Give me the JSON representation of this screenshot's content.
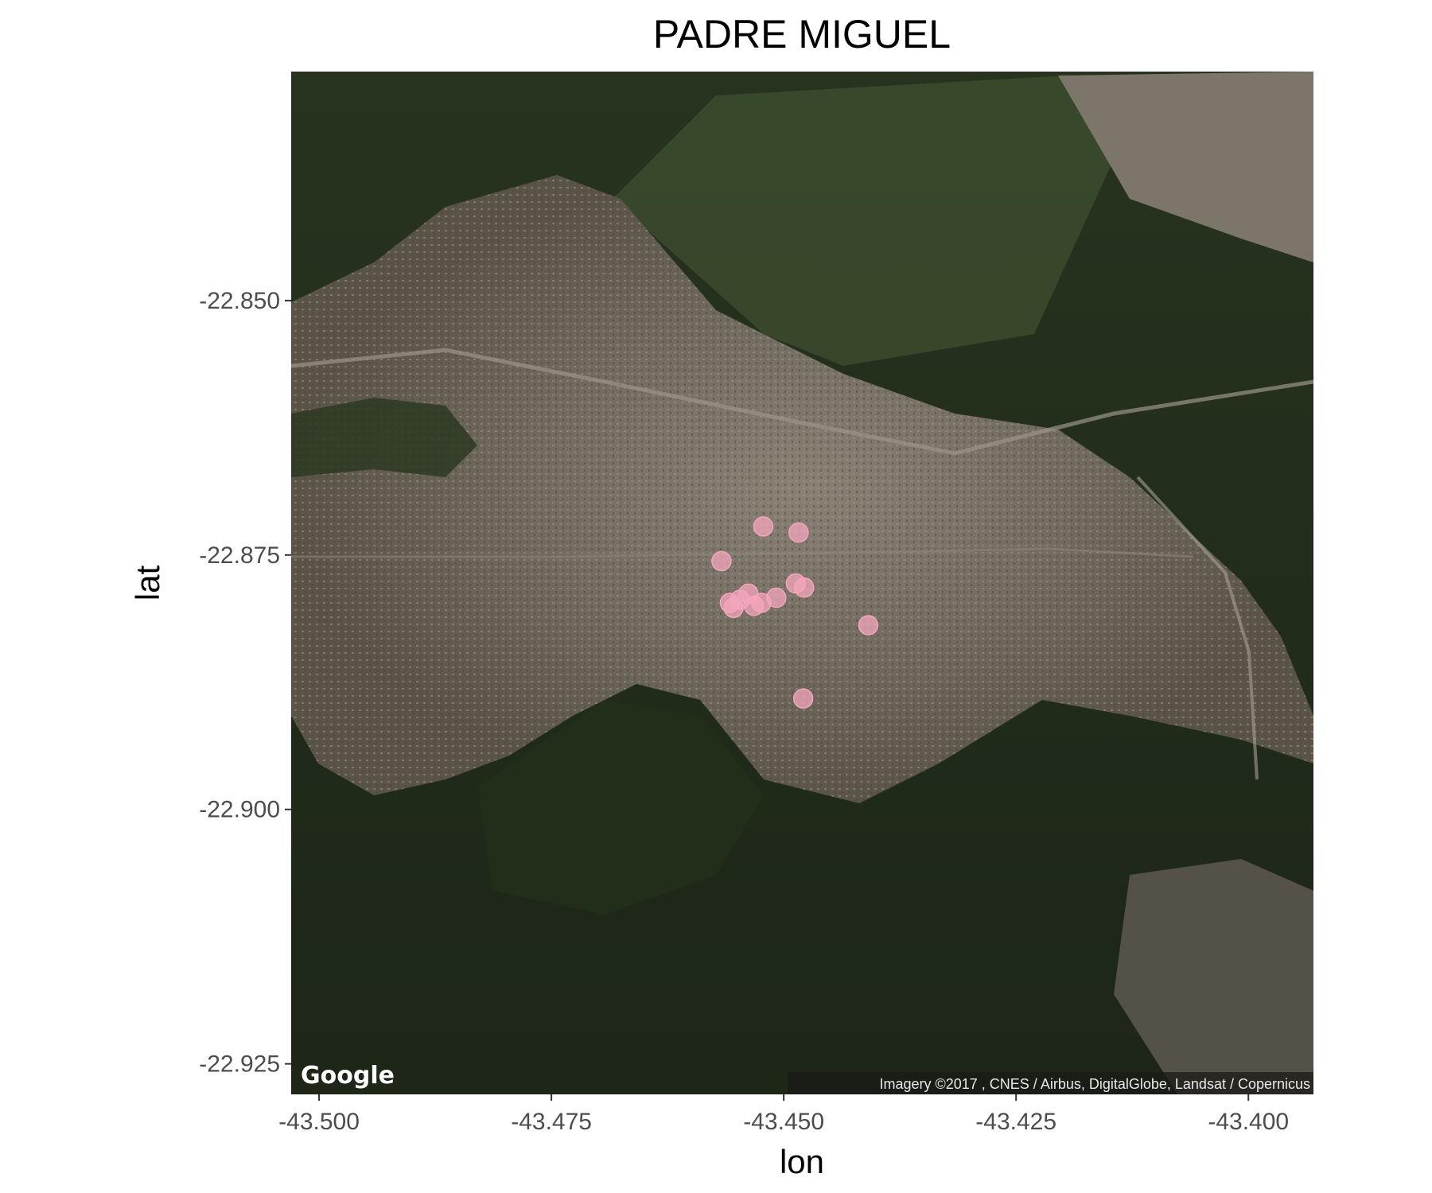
{
  "chart_data": {
    "type": "scatter",
    "title": "PADRE MIGUEL",
    "xlabel": "lon",
    "ylabel": "lat",
    "xlim": [
      -43.503,
      -43.393
    ],
    "ylim": [
      -22.928,
      -22.8275
    ],
    "x_ticks": [
      -43.5,
      -43.475,
      -43.45,
      -43.425,
      -43.4
    ],
    "x_tick_labels": [
      "-43.500",
      "-43.475",
      "-43.450",
      "-43.425",
      "-43.400"
    ],
    "y_ticks": [
      -22.85,
      -22.875,
      -22.9,
      -22.925
    ],
    "y_tick_labels": [
      "-22.850",
      "-22.875",
      "-22.900",
      "-22.925"
    ],
    "basemap": "satellite",
    "point_color": "#f4a6bd",
    "points": [
      {
        "x": -43.4522,
        "y": -22.8722
      },
      {
        "x": -43.4484,
        "y": -22.8728
      },
      {
        "x": -43.4567,
        "y": -22.8756
      },
      {
        "x": -43.4487,
        "y": -22.8778
      },
      {
        "x": -43.4478,
        "y": -22.8782
      },
      {
        "x": -43.4538,
        "y": -22.8788
      },
      {
        "x": -43.4508,
        "y": -22.8792
      },
      {
        "x": -43.4558,
        "y": -22.8797
      },
      {
        "x": -43.4547,
        "y": -22.8794
      },
      {
        "x": -43.4524,
        "y": -22.8797
      },
      {
        "x": -43.4554,
        "y": -22.8802
      },
      {
        "x": -43.4532,
        "y": -22.88
      },
      {
        "x": -43.4409,
        "y": -22.8819
      },
      {
        "x": -43.4479,
        "y": -22.8891
      }
    ]
  },
  "map": {
    "logo": "Google",
    "attribution": "Imagery ©2017 , CNES / Airbus, DigitalGlobe, Landsat / Copernicus"
  }
}
